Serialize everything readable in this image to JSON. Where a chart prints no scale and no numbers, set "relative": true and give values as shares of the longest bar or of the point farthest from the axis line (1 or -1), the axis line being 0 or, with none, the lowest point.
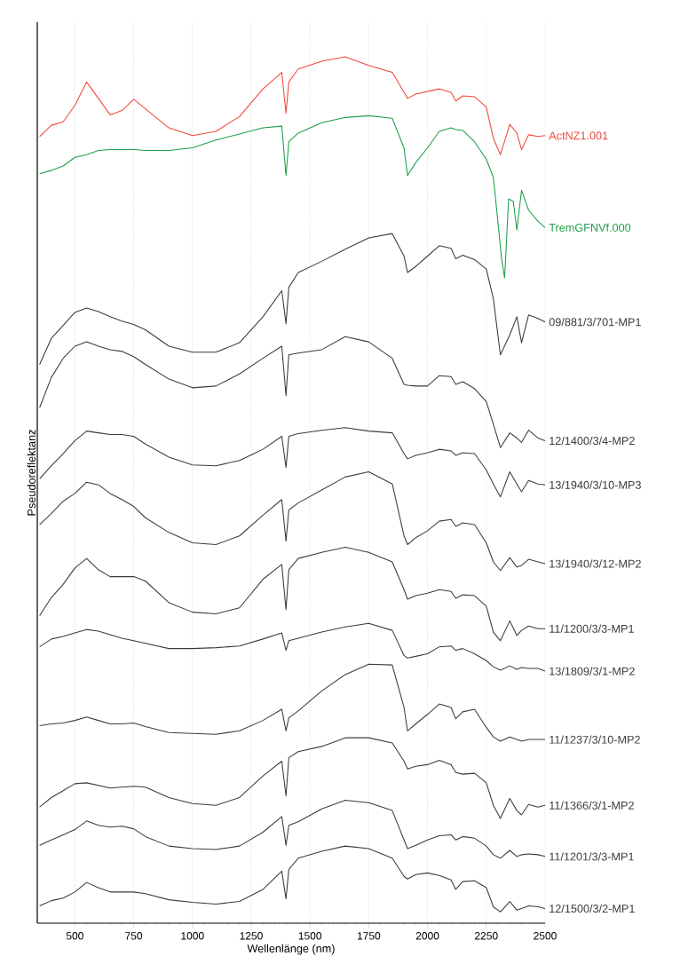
{
  "chart_data": {
    "type": "line",
    "xlabel": "Wellenlänge (nm)",
    "ylabel": "Pseudoreflektanz",
    "relative": true,
    "grid": "x",
    "xlim": [
      340,
      2500
    ],
    "xticks": [
      500,
      750,
      1000,
      1250,
      1500,
      1750,
      2000,
      2250,
      2500
    ],
    "x": [
      350,
      400,
      450,
      500,
      550,
      600,
      650,
      700,
      750,
      800,
      900,
      1000,
      1100,
      1200,
      1300,
      1380,
      1398,
      1410,
      1450,
      1550,
      1650,
      1750,
      1850,
      1900,
      1915,
      1950,
      2000,
      2050,
      2100,
      2120,
      2150,
      2200,
      2250,
      2280,
      2310,
      2350,
      2380,
      2400,
      2430,
      2470,
      2500
    ],
    "series": [
      {
        "name": "ActNZ1.001",
        "color": "#f0473c",
        "values": [
          0.908,
          0.921,
          0.925,
          0.944,
          0.971,
          0.952,
          0.933,
          0.938,
          0.951,
          0.94,
          0.918,
          0.909,
          0.914,
          0.931,
          0.963,
          0.982,
          0.935,
          0.971,
          0.986,
          0.995,
          1.0,
          0.99,
          0.982,
          0.959,
          0.952,
          0.957,
          0.96,
          0.963,
          0.959,
          0.949,
          0.955,
          0.954,
          0.942,
          0.906,
          0.887,
          0.922,
          0.912,
          0.893,
          0.91,
          0.908,
          0.909
        ]
      },
      {
        "name": "TremGFNVf.000",
        "color": "#1f9e4a",
        "x": [
          350,
          400,
          450,
          500,
          550,
          600,
          650,
          700,
          750,
          800,
          900,
          1000,
          1100,
          1200,
          1300,
          1380,
          1398,
          1410,
          1450,
          1550,
          1650,
          1750,
          1850,
          1900,
          1915,
          1950,
          2000,
          2050,
          2100,
          2120,
          2150,
          2200,
          2250,
          2280,
          2300,
          2315,
          2328,
          2345,
          2365,
          2380,
          2400,
          2430,
          2470,
          2500
        ],
        "values": [
          0.865,
          0.869,
          0.874,
          0.884,
          0.887,
          0.892,
          0.893,
          0.893,
          0.893,
          0.892,
          0.892,
          0.895,
          0.904,
          0.911,
          0.918,
          0.92,
          0.863,
          0.902,
          0.912,
          0.924,
          0.93,
          0.932,
          0.929,
          0.895,
          0.863,
          0.878,
          0.895,
          0.914,
          0.918,
          0.916,
          0.915,
          0.902,
          0.882,
          0.861,
          0.808,
          0.767,
          0.745,
          0.836,
          0.833,
          0.8,
          0.846,
          0.823,
          0.81,
          0.803
        ]
      },
      {
        "name": "09/881/3/701-MP1",
        "color": "#3c3c3c",
        "values": [
          0.645,
          0.675,
          0.69,
          0.705,
          0.71,
          0.706,
          0.7,
          0.695,
          0.691,
          0.685,
          0.666,
          0.659,
          0.659,
          0.67,
          0.7,
          0.73,
          0.692,
          0.734,
          0.751,
          0.764,
          0.778,
          0.791,
          0.796,
          0.77,
          0.751,
          0.758,
          0.77,
          0.782,
          0.779,
          0.767,
          0.771,
          0.766,
          0.755,
          0.721,
          0.656,
          0.679,
          0.7,
          0.67,
          0.702,
          0.698,
          0.694
        ]
      },
      {
        "name": "12/1400/3/4-MP2",
        "color": "#3c3c3c",
        "values": [
          0.595,
          0.63,
          0.652,
          0.666,
          0.671,
          0.666,
          0.662,
          0.66,
          0.654,
          0.645,
          0.628,
          0.618,
          0.62,
          0.634,
          0.652,
          0.666,
          0.609,
          0.656,
          0.658,
          0.662,
          0.677,
          0.671,
          0.652,
          0.622,
          0.621,
          0.62,
          0.62,
          0.632,
          0.631,
          0.622,
          0.625,
          0.617,
          0.602,
          0.576,
          0.549,
          0.566,
          0.56,
          0.555,
          0.569,
          0.56,
          0.557
        ]
      },
      {
        "name": "13/1940/3/10-MP3",
        "color": "#3c3c3c",
        "values": [
          0.513,
          0.528,
          0.542,
          0.557,
          0.568,
          0.566,
          0.564,
          0.564,
          0.562,
          0.553,
          0.538,
          0.529,
          0.528,
          0.534,
          0.547,
          0.562,
          0.526,
          0.562,
          0.565,
          0.569,
          0.572,
          0.568,
          0.566,
          0.542,
          0.536,
          0.54,
          0.543,
          0.547,
          0.545,
          0.54,
          0.543,
          0.542,
          0.523,
          0.507,
          0.492,
          0.521,
          0.507,
          0.498,
          0.511,
          0.507,
          0.506
        ]
      },
      {
        "name": "13/1940/3/12-MP2",
        "color": "#3c3c3c",
        "values": [
          0.46,
          0.473,
          0.487,
          0.496,
          0.509,
          0.506,
          0.496,
          0.489,
          0.481,
          0.468,
          0.451,
          0.439,
          0.437,
          0.447,
          0.471,
          0.489,
          0.441,
          0.477,
          0.485,
          0.5,
          0.515,
          0.521,
          0.507,
          0.447,
          0.437,
          0.445,
          0.453,
          0.464,
          0.466,
          0.458,
          0.462,
          0.46,
          0.439,
          0.417,
          0.407,
          0.422,
          0.411,
          0.413,
          0.42,
          0.417,
          0.415
        ]
      },
      {
        "name": "11/1200/3/3-MP1",
        "color": "#3c3c3c",
        "values": [
          0.355,
          0.376,
          0.391,
          0.41,
          0.421,
          0.408,
          0.4,
          0.4,
          0.4,
          0.395,
          0.37,
          0.359,
          0.357,
          0.364,
          0.397,
          0.414,
          0.362,
          0.408,
          0.421,
          0.428,
          0.434,
          0.428,
          0.417,
          0.385,
          0.374,
          0.378,
          0.381,
          0.385,
          0.383,
          0.375,
          0.379,
          0.378,
          0.366,
          0.336,
          0.326,
          0.349,
          0.332,
          0.338,
          0.343,
          0.34,
          0.34
        ]
      },
      {
        "name": "13/1809/3/1-MP2",
        "color": "#3c3c3c",
        "values": [
          0.319,
          0.328,
          0.331,
          0.335,
          0.339,
          0.337,
          0.333,
          0.329,
          0.326,
          0.323,
          0.317,
          0.317,
          0.318,
          0.32,
          0.328,
          0.335,
          0.315,
          0.326,
          0.329,
          0.336,
          0.342,
          0.346,
          0.338,
          0.309,
          0.306,
          0.308,
          0.311,
          0.319,
          0.32,
          0.315,
          0.317,
          0.311,
          0.303,
          0.296,
          0.292,
          0.297,
          0.293,
          0.295,
          0.294,
          0.294,
          0.291
        ]
      },
      {
        "name": "11/1237/3/10-MP2",
        "color": "#3c3c3c",
        "values": [
          0.228,
          0.23,
          0.231,
          0.234,
          0.238,
          0.234,
          0.23,
          0.23,
          0.231,
          0.227,
          0.22,
          0.219,
          0.218,
          0.222,
          0.234,
          0.247,
          0.222,
          0.237,
          0.245,
          0.268,
          0.287,
          0.299,
          0.298,
          0.249,
          0.222,
          0.23,
          0.241,
          0.253,
          0.249,
          0.236,
          0.244,
          0.247,
          0.226,
          0.215,
          0.21,
          0.215,
          0.212,
          0.21,
          0.212,
          0.212,
          0.212
        ]
      },
      {
        "name": "11/1366/3/1-MP2",
        "color": "#3c3c3c",
        "values": [
          0.134,
          0.145,
          0.153,
          0.161,
          0.162,
          0.159,
          0.156,
          0.157,
          0.158,
          0.157,
          0.145,
          0.138,
          0.136,
          0.145,
          0.17,
          0.187,
          0.147,
          0.191,
          0.198,
          0.204,
          0.214,
          0.214,
          0.208,
          0.187,
          0.178,
          0.181,
          0.183,
          0.188,
          0.183,
          0.174,
          0.172,
          0.173,
          0.162,
          0.136,
          0.121,
          0.144,
          0.13,
          0.125,
          0.137,
          0.134,
          0.136
        ]
      },
      {
        "name": "11/1201/3/3-MP1",
        "color": "#3c3c3c",
        "values": [
          0.09,
          0.096,
          0.102,
          0.108,
          0.118,
          0.113,
          0.111,
          0.112,
          0.109,
          0.1,
          0.089,
          0.086,
          0.085,
          0.089,
          0.105,
          0.123,
          0.09,
          0.113,
          0.117,
          0.132,
          0.142,
          0.139,
          0.13,
          0.096,
          0.086,
          0.09,
          0.096,
          0.101,
          0.102,
          0.096,
          0.1,
          0.098,
          0.089,
          0.079,
          0.075,
          0.084,
          0.077,
          0.079,
          0.08,
          0.079,
          0.077
        ]
      },
      {
        "name": "12/1500/3/2-MP1",
        "color": "#3c3c3c",
        "values": [
          0.02,
          0.026,
          0.029,
          0.036,
          0.047,
          0.041,
          0.036,
          0.036,
          0.036,
          0.034,
          0.027,
          0.024,
          0.022,
          0.025,
          0.039,
          0.06,
          0.028,
          0.062,
          0.075,
          0.083,
          0.089,
          0.086,
          0.075,
          0.054,
          0.051,
          0.056,
          0.058,
          0.055,
          0.05,
          0.039,
          0.048,
          0.049,
          0.041,
          0.019,
          0.013,
          0.025,
          0.015,
          0.017,
          0.02,
          0.019,
          0.017
        ]
      }
    ]
  }
}
